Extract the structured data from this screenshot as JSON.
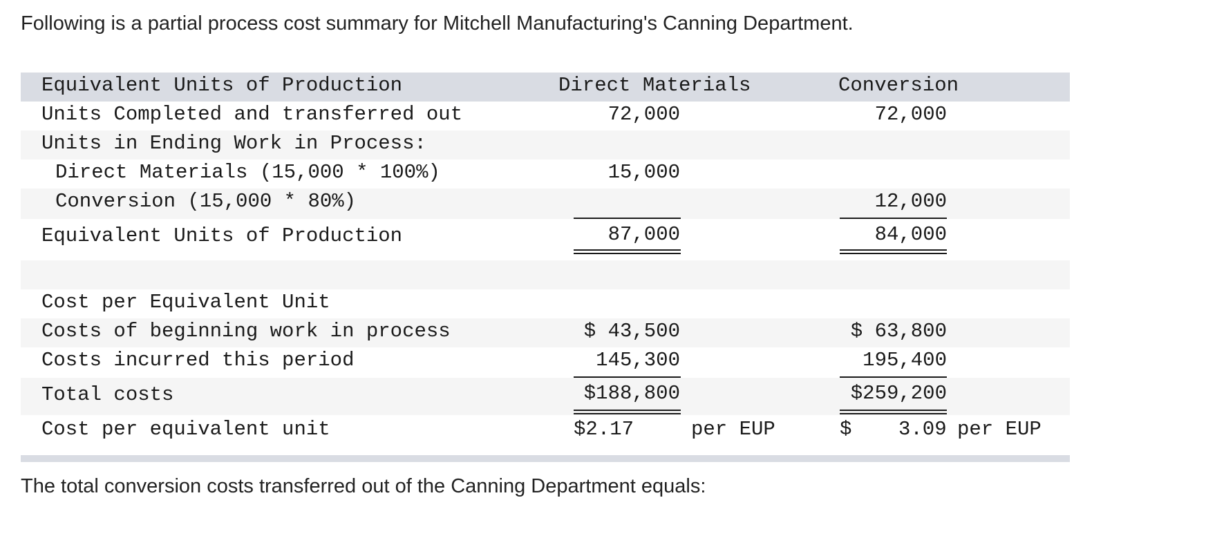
{
  "intro": "Following is a partial process cost summary for Mitchell Manufacturing's Canning Department.",
  "question": "The total conversion costs transferred out of the Canning Department equals:",
  "table": {
    "header": {
      "label": "Equivalent Units of Production",
      "dm": "Direct Materials",
      "cv": "Conversion"
    },
    "units_completed": {
      "label": "Units Completed and transferred out",
      "dm": "72,000",
      "cv": "72,000"
    },
    "units_ending_wip": {
      "label": "Units in Ending Work in Process:"
    },
    "dm_line": {
      "label": "Direct Materials (15,000 * 100%)",
      "dm": "15,000"
    },
    "conv_line": {
      "label": "Conversion (15,000 * 80%)",
      "cv": "12,000"
    },
    "eup_total": {
      "label": "Equivalent Units of Production",
      "dm": "87,000",
      "cv": "84,000"
    },
    "cost_header": {
      "label": "Cost per Equivalent Unit"
    },
    "beginning_wip": {
      "label": "Costs of beginning work in process",
      "dm": "$ 43,500",
      "cv": "$ 63,800"
    },
    "incurred": {
      "label": "Costs incurred this period",
      "dm": "145,300",
      "cv": "195,400"
    },
    "total_costs": {
      "label": "Total costs",
      "dm": "$188,800",
      "cv": "$259,200"
    },
    "cost_per_unit": {
      "label": "Cost per equivalent unit",
      "dm": "$2.17",
      "dm_per": "per EUP",
      "cv_dollar": "$",
      "cv": "3.09",
      "cv_per": "per EUP"
    }
  }
}
